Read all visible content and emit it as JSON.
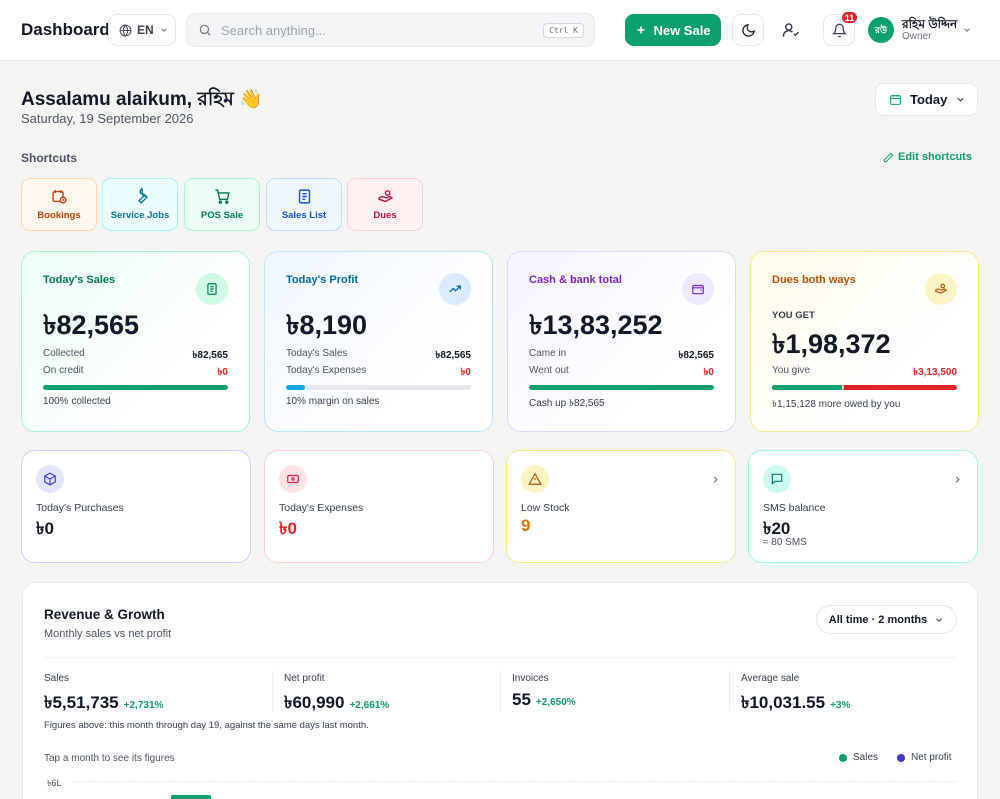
{
  "topbar": {
    "title": "Dashboard",
    "language": "EN",
    "search_placeholder": "Search anything...",
    "search_shortcut": "Ctrl K",
    "new_sale_label": "New Sale",
    "notifications_count": "11",
    "user": {
      "initials": "রউ",
      "name": "রহিম উদ্দিন",
      "role": "Owner"
    }
  },
  "header": {
    "greeting": "Assalamu alaikum, রহিম 👋",
    "date": "Saturday, 19 September 2026",
    "period_label": "Today"
  },
  "shortcuts": {
    "title": "Shortcuts",
    "edit_label": "Edit shortcuts",
    "items": [
      {
        "label": "Bookings",
        "icon": "calendar-clock-icon"
      },
      {
        "label": "Service Jobs",
        "icon": "wrench-icon"
      },
      {
        "label": "POS Sale",
        "icon": "cart-icon"
      },
      {
        "label": "Sales List",
        "icon": "list-document-icon"
      },
      {
        "label": "Dues",
        "icon": "hand-coins-icon"
      }
    ]
  },
  "summary_cards": {
    "sales": {
      "label": "Today's Sales",
      "value": "৳82,565",
      "row1_label": "Collected",
      "row1_value": "৳82,565",
      "row2_label": "On credit",
      "row2_value": "৳0",
      "progress": 1.0,
      "footer": "100% collected"
    },
    "profit": {
      "label": "Today's Profit",
      "value": "৳8,190",
      "row1_label": "Today's Sales",
      "row1_value": "৳82,565",
      "row2_label": "Today's Expenses",
      "row2_value": "৳0",
      "progress": 0.1,
      "footer": "10% margin on sales"
    },
    "cash": {
      "label": "Cash & bank total",
      "value": "৳13,83,252",
      "row1_label": "Came in",
      "row1_value": "৳82,565",
      "row2_label": "Went out",
      "row2_value": "৳0",
      "progress": 1.0,
      "footer": "Cash up ৳82,565"
    },
    "dues": {
      "label": "Dues both ways",
      "you_get_label": "YOU GET",
      "value": "৳1,98,372",
      "row_label": "You give",
      "row_value": "৳3,13,500",
      "get_share": 0.39,
      "footer": "৳1,15,128 more owed by you"
    }
  },
  "mini_cards": {
    "purchases": {
      "label": "Today's Purchases",
      "value": "৳0"
    },
    "expenses": {
      "label": "Today's Expenses",
      "value": "৳0"
    },
    "low_stock": {
      "label": "Low Stock",
      "value": "9"
    },
    "sms": {
      "label": "SMS balance",
      "value": "৳20",
      "sub": "≈ 80 SMS"
    }
  },
  "revenue": {
    "title": "Revenue & Growth",
    "subtitle": "Monthly sales vs net profit",
    "range_label": "All time · 2 months",
    "stats": [
      {
        "label": "Sales",
        "value": "৳5,51,735",
        "delta": "+2,731%"
      },
      {
        "label": "Net profit",
        "value": "৳60,990",
        "delta": "+2,661%"
      },
      {
        "label": "Invoices",
        "value": "55",
        "delta": "+2,650%"
      },
      {
        "label": "Average sale",
        "value": "৳10,031.55",
        "delta": "+3%"
      }
    ],
    "note": "Figures above: this month through day 19, against the same days last month.",
    "tap_hint": "Tap a month to see its figures",
    "legend_sales": "Sales",
    "legend_profit": "Net profit",
    "y_top_label": "৳6L"
  },
  "colors": {
    "brand": "#0e9f6e",
    "danger": "#e02424",
    "profit_bar": "#0ea5e9",
    "net_profit_legend": "#4338ca",
    "dues_label": "#b45309",
    "cash_label": "#7e22ce"
  }
}
